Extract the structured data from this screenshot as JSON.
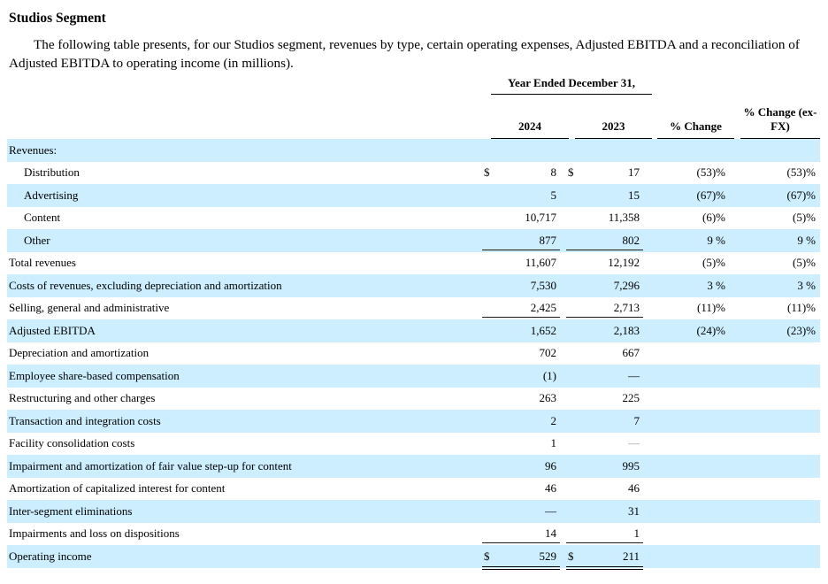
{
  "page": {
    "title": "Studios Segment",
    "intro": "The following table presents, for our Studios segment, revenues by type, certain operating expenses, Adjusted EBITDA and a reconciliation of Adjusted EBITDA to operating income (in millions)."
  },
  "table": {
    "group_header": "Year Ended December 31,",
    "columns": [
      "2024",
      "2023",
      "% Change",
      "% Change (ex-FX)"
    ],
    "colors": {
      "row_shade": "#cceeff",
      "text": "#000000",
      "rule": "#000000",
      "muted_dash": "#9a9a9a"
    },
    "rows": [
      {
        "label": "Revenues:",
        "indent": 0,
        "shaded": true,
        "d24": "",
        "v24": "",
        "d23": "",
        "v23": "",
        "chg": "",
        "fx": "",
        "rule": "none"
      },
      {
        "label": "Distribution",
        "indent": 1,
        "shaded": false,
        "d24": "$",
        "v24": "8",
        "d23": "$",
        "v23": "17",
        "chg": "(53)%",
        "fx": "(53)%",
        "rule": "none"
      },
      {
        "label": "Advertising",
        "indent": 1,
        "shaded": true,
        "d24": "",
        "v24": "5",
        "d23": "",
        "v23": "15",
        "chg": "(67)%",
        "fx": "(67)%",
        "rule": "none"
      },
      {
        "label": "Content",
        "indent": 1,
        "shaded": false,
        "d24": "",
        "v24": "10,717",
        "d23": "",
        "v23": "11,358",
        "chg": "(6)%",
        "fx": "(5)%",
        "rule": "none"
      },
      {
        "label": "Other",
        "indent": 1,
        "shaded": true,
        "d24": "",
        "v24": "877",
        "d23": "",
        "v23": "802",
        "chg": "9 %",
        "fx": "9 %",
        "rule": "single"
      },
      {
        "label": "Total revenues",
        "indent": 0,
        "shaded": false,
        "d24": "",
        "v24": "11,607",
        "d23": "",
        "v23": "12,192",
        "chg": "(5)%",
        "fx": "(5)%",
        "rule": "none"
      },
      {
        "label": "Costs of revenues, excluding depreciation and amortization",
        "indent": 0,
        "shaded": true,
        "d24": "",
        "v24": "7,530",
        "d23": "",
        "v23": "7,296",
        "chg": "3 %",
        "fx": "3 %",
        "rule": "none"
      },
      {
        "label": "Selling, general and administrative",
        "indent": 0,
        "shaded": false,
        "d24": "",
        "v24": "2,425",
        "d23": "",
        "v23": "2,713",
        "chg": "(11)%",
        "fx": "(11)%",
        "rule": "single"
      },
      {
        "label": "Adjusted EBITDA",
        "indent": 0,
        "shaded": true,
        "d24": "",
        "v24": "1,652",
        "d23": "",
        "v23": "2,183",
        "chg": "(24)%",
        "fx": "(23)%",
        "rule": "none"
      },
      {
        "label": "Depreciation and amortization",
        "indent": 0,
        "shaded": false,
        "d24": "",
        "v24": "702",
        "d23": "",
        "v23": "667",
        "chg": "",
        "fx": "",
        "rule": "none"
      },
      {
        "label": "Employee share-based compensation",
        "indent": 0,
        "shaded": true,
        "d24": "",
        "v24": "(1)",
        "d23": "",
        "v23": "—",
        "chg": "",
        "fx": "",
        "rule": "none"
      },
      {
        "label": "Restructuring and other charges",
        "indent": 0,
        "shaded": false,
        "d24": "",
        "v24": "263",
        "d23": "",
        "v23": "225",
        "chg": "",
        "fx": "",
        "rule": "none"
      },
      {
        "label": "Transaction and integration costs",
        "indent": 0,
        "shaded": true,
        "d24": "",
        "v24": "2",
        "d23": "",
        "v23": "7",
        "chg": "",
        "fx": "",
        "rule": "none"
      },
      {
        "label": "Facility consolidation costs",
        "indent": 0,
        "shaded": false,
        "d24": "",
        "v24": "1",
        "d23": "",
        "v23": "—",
        "chg": "",
        "fx": "",
        "rule": "none",
        "muted23": true
      },
      {
        "label": "Impairment and amortization of fair value step-up for content",
        "indent": 0,
        "shaded": true,
        "d24": "",
        "v24": "96",
        "d23": "",
        "v23": "995",
        "chg": "",
        "fx": "",
        "rule": "none"
      },
      {
        "label": "Amortization of capitalized interest for content",
        "indent": 0,
        "shaded": false,
        "d24": "",
        "v24": "46",
        "d23": "",
        "v23": "46",
        "chg": "",
        "fx": "",
        "rule": "none"
      },
      {
        "label": "Inter-segment eliminations",
        "indent": 0,
        "shaded": true,
        "d24": "",
        "v24": "—",
        "d23": "",
        "v23": "31",
        "chg": "",
        "fx": "",
        "rule": "none"
      },
      {
        "label": "Impairments and loss on dispositions",
        "indent": 0,
        "shaded": false,
        "d24": "",
        "v24": "14",
        "d23": "",
        "v23": "1",
        "chg": "",
        "fx": "",
        "rule": "single"
      },
      {
        "label": "Operating income",
        "indent": 0,
        "shaded": true,
        "d24": "$",
        "v24": "529",
        "d23": "$",
        "v23": "211",
        "chg": "",
        "fx": "",
        "rule": "double"
      }
    ]
  }
}
